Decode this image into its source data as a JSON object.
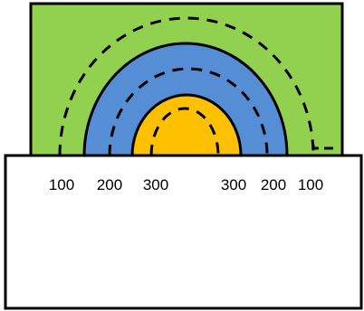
{
  "diagram": {
    "colors": {
      "background_rect": "#92d050",
      "middle_band": "#558ed5",
      "inner_core": "#ffc000",
      "foreground_box": "#ffffff",
      "stroke": "#000000"
    },
    "labels_left": [
      "100",
      "200",
      "300"
    ],
    "labels_right": [
      "300",
      "200",
      "100"
    ]
  }
}
